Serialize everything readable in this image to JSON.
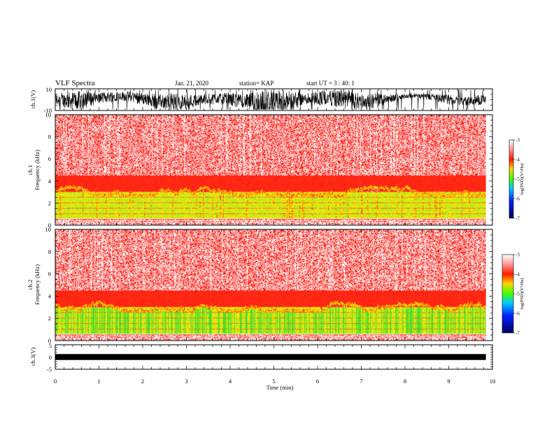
{
  "header": {
    "title": "VLF Spectra",
    "date": "Jan. 21, 2020",
    "station": "station= KAP",
    "start_ut": "start UT =  3 : 40: 1"
  },
  "colors": {
    "background": "#ffffff",
    "axes": "#000000",
    "spectrogram_low": "#ff2a1e",
    "spectrogram_band": "#ffe000",
    "spectrogram_mid": "#32e632",
    "spectrogram_high_noise": "#ffffff"
  },
  "chart_data": [
    {
      "type": "line",
      "panel": "ch1-waveform",
      "ylabel": "ch.1(V)",
      "ylim": [
        -10,
        10
      ],
      "yticks": [
        "10",
        "-10"
      ],
      "xlim": [
        0,
        10
      ],
      "description_of_series": "dense broadband waveform filling roughly -9 to 9 V",
      "series": [
        {
          "values_range": [
            -9,
            9
          ]
        }
      ]
    },
    {
      "type": "heatmap",
      "panel": "ch1-spectrogram",
      "ylabel": "ch.1\nFrequency (kHz)",
      "ylabel_line1": "ch.1",
      "ylabel_line2": "Frequency (kHz)",
      "ylim": [
        0,
        10
      ],
      "yticks": [
        "0",
        "2",
        "4",
        "6",
        "8",
        "10"
      ],
      "xlim": [
        0,
        10
      ],
      "data_end_min": 9.85,
      "bands_khz": [
        {
          "from": 0,
          "to": 0.6,
          "level": -3.2,
          "note": "near-saturated red with white harmonic lines"
        },
        {
          "from": 0.6,
          "to": 3.0,
          "level": -4.6,
          "note": "yellow/green enhanced band"
        },
        {
          "from": 3.0,
          "to": 4.5,
          "level": -3.6,
          "note": "red"
        },
        {
          "from": 4.5,
          "to": 10,
          "level": -3.3,
          "note": "red speckled with white"
        }
      ],
      "colorbar": {
        "min": -7,
        "max": -3,
        "ticks": [
          "-3",
          "-4",
          "-5",
          "-6",
          "-7"
        ],
        "label": "log(PSD)(V²/Hz)"
      }
    },
    {
      "type": "heatmap",
      "panel": "ch2-spectrogram",
      "ylabel_line1": "ch.2",
      "ylabel_line2": "Frequency (kHz)",
      "ylim": [
        0,
        10
      ],
      "yticks": [
        "0",
        "2",
        "4",
        "6",
        "8",
        "10"
      ],
      "xlim": [
        0,
        10
      ],
      "data_end_min": 9.85,
      "bands_khz": [
        {
          "from": 0,
          "to": 0.6,
          "level": -3.2
        },
        {
          "from": 0.6,
          "to": 3.0,
          "level": -4.8
        },
        {
          "from": 3.0,
          "to": 4.5,
          "level": -3.6
        },
        {
          "from": 4.5,
          "to": 10,
          "level": -3.3
        }
      ],
      "colorbar": {
        "min": -7,
        "max": -3,
        "ticks": [
          "-3",
          "-4",
          "-5",
          "-6",
          "-7"
        ],
        "label": "log(PSD)(V²/Hz)"
      }
    },
    {
      "type": "line",
      "panel": "ch3-waveform",
      "ylabel": "ch.3(V)",
      "ylim": [
        -5,
        5
      ],
      "yticks": [
        "5",
        "0",
        "-5"
      ],
      "xlim": [
        0,
        10
      ],
      "series": [
        {
          "values_range": [
            -0.5,
            0.5
          ]
        }
      ]
    }
  ],
  "xaxis": {
    "label": "Time (min)",
    "ticks": [
      "0",
      "1",
      "2",
      "3",
      "4",
      "5",
      "6",
      "7",
      "8",
      "9",
      "10"
    ]
  }
}
